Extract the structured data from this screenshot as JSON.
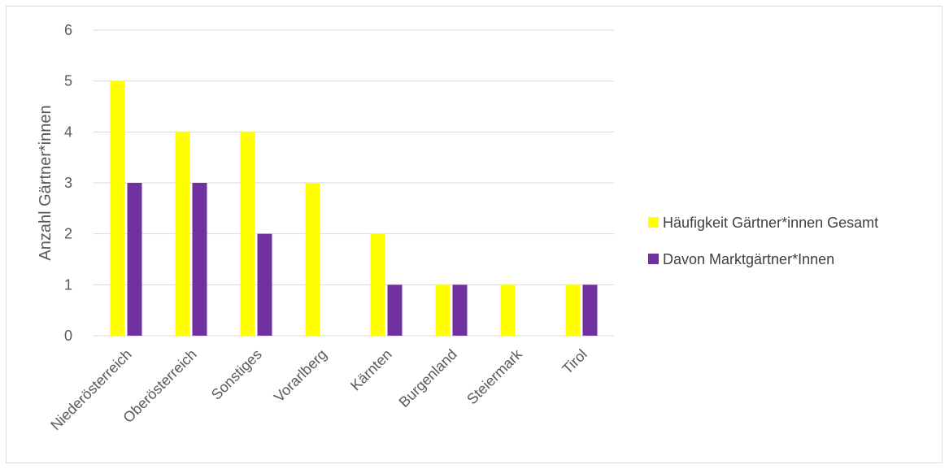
{
  "chart_data": {
    "type": "bar",
    "title": "",
    "xlabel": "",
    "ylabel": "Anzahl Gärtner*innen",
    "ylim": [
      0,
      6
    ],
    "yticks": [
      0,
      1,
      2,
      3,
      4,
      5,
      6
    ],
    "grid": true,
    "legend_position": "right",
    "categories": [
      "Niederösterreich",
      "Oberösterreich",
      "Sonstiges",
      "Vorarlberg",
      "Kärnten",
      "Burgenland",
      "Steiermark",
      "Tirol"
    ],
    "series": [
      {
        "name": "Häufigkeit Gärtner*innen Gesamt",
        "color": "#ffff00",
        "values": [
          5,
          4,
          4,
          3,
          2,
          1,
          1,
          1
        ]
      },
      {
        "name": "Davon Marktgärtner*Innen",
        "color": "#7030a0",
        "values": [
          3,
          3,
          2,
          0,
          1,
          1,
          0,
          1
        ]
      }
    ]
  }
}
